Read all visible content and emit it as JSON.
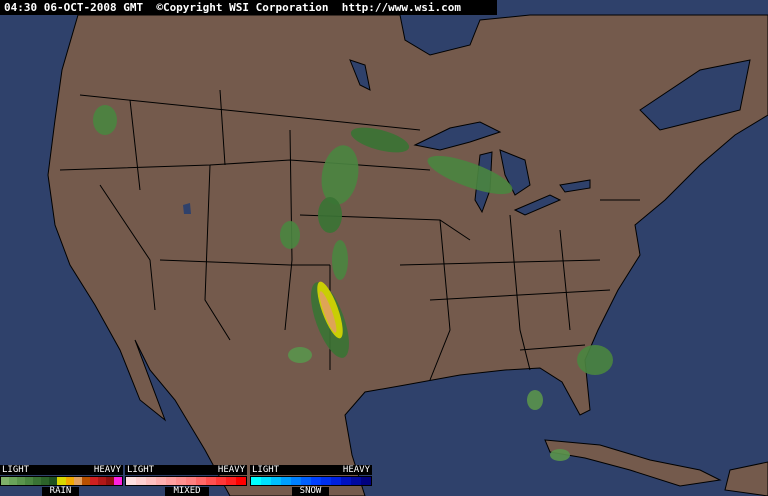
{
  "header": {
    "text": "04:30 06-OCT-2008 GMT  ©Copyright WSI Corporation  http://www.wsi.com"
  },
  "colors": {
    "ocean": "#2f416b",
    "land": "#745a4c",
    "borders": "#000000"
  },
  "legend": [
    {
      "low": "LIGHT",
      "high": "HEAVY",
      "label": "RAIN",
      "colors": [
        "#7fb06a",
        "#6aa35a",
        "#5a944c",
        "#4a8540",
        "#3a7334",
        "#2c632a",
        "#1f5220",
        "#d8d800",
        "#f0a800",
        "#e0a060",
        "#b85000",
        "#d02020",
        "#b01818",
        "#901010",
        "#ff20e0"
      ]
    },
    {
      "low": "LIGHT",
      "high": "HEAVY",
      "label": "MIXED",
      "colors": [
        "#ffe0e0",
        "#ffd0d0",
        "#ffc0c0",
        "#ffb0b0",
        "#ffa0a0",
        "#ff9090",
        "#ff8080",
        "#ff6868",
        "#ff5050",
        "#ff3838",
        "#ff2020",
        "#ff0000"
      ]
    },
    {
      "low": "LIGHT",
      "high": "HEAVY",
      "label": "SNOW",
      "colors": [
        "#00ffff",
        "#00e0ff",
        "#00c0ff",
        "#00a0ff",
        "#0080ff",
        "#0060ff",
        "#0040ff",
        "#0030f0",
        "#0020e0",
        "#0010c0",
        "#0008a0",
        "#000080"
      ]
    }
  ]
}
